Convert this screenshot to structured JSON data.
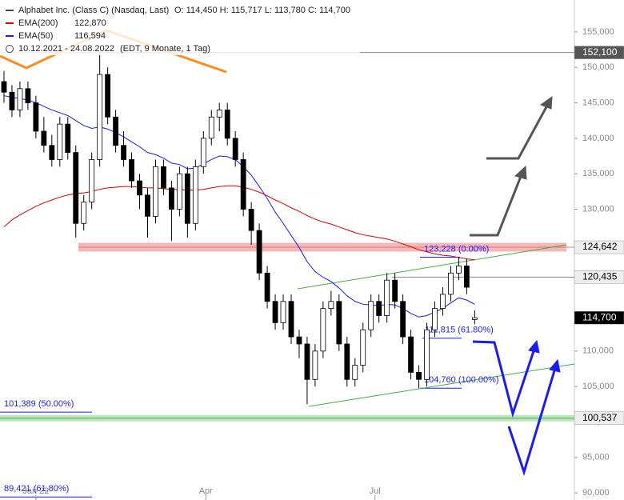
{
  "chart_data": {
    "type": "candlestick",
    "title": "Alphabet Inc. (Class C) (Nasdaq, Last)",
    "ohlc_text": "O: 114,450  H: 115,717  L: 113,780  C: 114,700",
    "period_text": "10.12.2021 - 24.08.2022",
    "period_note": "(EDT, 9 Monate, 1 Tag)",
    "xlim": [
      0,
      72
    ],
    "xticks": [
      {
        "value": 4.5,
        "label": "Jan 22"
      },
      {
        "value": 25.8,
        "label": "Apr"
      },
      {
        "value": 47,
        "label": "Jul"
      }
    ],
    "ylim": [
      89000,
      159500
    ],
    "yticks": [
      {
        "value": 155000,
        "label": "155,000"
      },
      {
        "value": 150000,
        "label": "150,000"
      },
      {
        "value": 145000,
        "label": "145,000"
      },
      {
        "value": 140000,
        "label": "140,000"
      },
      {
        "value": 135000,
        "label": "135,000"
      },
      {
        "value": 130000,
        "label": "130,000"
      },
      {
        "value": 125000,
        "label": "125,000"
      },
      {
        "value": 120000,
        "label": "120,000"
      },
      {
        "value": 115000,
        "label": "115,000"
      },
      {
        "value": 110000,
        "label": "110,000"
      },
      {
        "value": 105000,
        "label": "105,000"
      },
      {
        "value": 100000,
        "label": "100,000"
      },
      {
        "value": 95000,
        "label": "95,000"
      },
      {
        "value": 90000,
        "label": "90,000"
      }
    ],
    "candles": [
      [
        148000,
        149500,
        145000,
        146500
      ],
      [
        146500,
        147500,
        143000,
        144000
      ],
      [
        144000,
        148000,
        143000,
        147000
      ],
      [
        147000,
        148000,
        144000,
        145000
      ],
      [
        145000,
        146000,
        140000,
        141000
      ],
      [
        141000,
        143000,
        138000,
        139000
      ],
      [
        139000,
        140500,
        136000,
        137000
      ],
      [
        137000,
        143000,
        136000,
        142000
      ],
      [
        142000,
        143000,
        137000,
        138000
      ],
      [
        138000,
        139000,
        126000,
        128000
      ],
      [
        128000,
        132000,
        127000,
        131000
      ],
      [
        131000,
        138000,
        130000,
        137000
      ],
      [
        137000,
        152000,
        136000,
        149000
      ],
      [
        149000,
        150000,
        142000,
        143000
      ],
      [
        143000,
        144000,
        138000,
        139000
      ],
      [
        139000,
        141000,
        136000,
        137000
      ],
      [
        137000,
        138000,
        133000,
        134000
      ],
      [
        134000,
        135000,
        130000,
        132000
      ],
      [
        132000,
        133000,
        126000,
        129000
      ],
      [
        129000,
        137000,
        128000,
        136000
      ],
      [
        136000,
        137000,
        132000,
        133000
      ],
      [
        133000,
        134000,
        125500,
        130000
      ],
      [
        130000,
        136000,
        129000,
        135000
      ],
      [
        135000,
        136000,
        126000,
        128000
      ],
      [
        128000,
        137000,
        127000,
        136000
      ],
      [
        136000,
        141000,
        135000,
        140000
      ],
      [
        140000,
        144000,
        139000,
        143000
      ],
      [
        143000,
        145000,
        141000,
        144000
      ],
      [
        144000,
        145000,
        139000,
        140000
      ],
      [
        140000,
        141000,
        136000,
        137000
      ],
      [
        137000,
        138000,
        129000,
        130000
      ],
      [
        130000,
        131000,
        125000,
        127000
      ],
      [
        127000,
        128000,
        120000,
        121000
      ],
      [
        121000,
        122000,
        116000,
        117000
      ],
      [
        117000,
        118000,
        113000,
        114000
      ],
      [
        114000,
        118000,
        113000,
        117000
      ],
      [
        117000,
        118000,
        111000,
        112000
      ],
      [
        112000,
        113000,
        109000,
        111000
      ],
      [
        111000,
        112000,
        102500,
        106000
      ],
      [
        106000,
        111000,
        105000,
        110000
      ],
      [
        110000,
        117000,
        109000,
        116000
      ],
      [
        116000,
        118500,
        115000,
        117000
      ],
      [
        117000,
        118000,
        110000,
        111000
      ],
      [
        111000,
        112000,
        105000,
        106000
      ],
      [
        106000,
        109000,
        105000,
        108000
      ],
      [
        108000,
        114000,
        107000,
        113000
      ],
      [
        113000,
        118000,
        112000,
        117000
      ],
      [
        117000,
        118000,
        114000,
        115000
      ],
      [
        115000,
        121000,
        114000,
        120000
      ],
      [
        120000,
        121000,
        116000,
        117000
      ],
      [
        117000,
        118000,
        111000,
        112000
      ],
      [
        112000,
        113000,
        106000,
        107000
      ],
      [
        107000,
        108000,
        104760,
        106000
      ],
      [
        106000,
        114000,
        105000,
        113000
      ],
      [
        113000,
        117000,
        112000,
        116000
      ],
      [
        116000,
        119000,
        115000,
        118000
      ],
      [
        118000,
        122000,
        117000,
        121000
      ],
      [
        121000,
        123228,
        120000,
        122000
      ],
      [
        122000,
        123000,
        118000,
        119000
      ],
      [
        114450,
        115717,
        113780,
        114700
      ]
    ],
    "series": [
      {
        "name": "EMA(200)",
        "value_label": "122,870",
        "color": "#e00000",
        "values": [
          127500,
          128500,
          129200,
          129800,
          130400,
          130900,
          131300,
          131700,
          132000,
          132200,
          132300,
          132500,
          132800,
          133000,
          133100,
          133200,
          133200,
          133100,
          133000,
          133000,
          132900,
          132800,
          132800,
          132700,
          132700,
          132800,
          133000,
          133200,
          133300,
          133300,
          133100,
          132800,
          132400,
          131900,
          131300,
          130800,
          130200,
          129700,
          129100,
          128600,
          128200,
          127900,
          127500,
          127100,
          126700,
          126400,
          126200,
          126000,
          125800,
          125500,
          125100,
          124700,
          124300,
          124000,
          123700,
          123500,
          123400,
          123200,
          123000,
          122870
        ]
      },
      {
        "name": "EMA(50)",
        "value_label": "116,594",
        "color": "#1a1aff",
        "values": [
          146000,
          145800,
          145600,
          145400,
          145000,
          144500,
          144000,
          143600,
          143200,
          142500,
          141800,
          141400,
          141600,
          141300,
          140800,
          140200,
          139500,
          138800,
          138000,
          137700,
          137200,
          136500,
          136300,
          135700,
          135800,
          136400,
          137000,
          137500,
          137400,
          137000,
          136000,
          134800,
          133200,
          131500,
          129600,
          128000,
          126300,
          124600,
          122600,
          121200,
          120400,
          119800,
          118900,
          117800,
          117000,
          116600,
          116500,
          116400,
          116600,
          116500,
          116000,
          115300,
          114800,
          115000,
          115500,
          116000,
          116800,
          117500,
          117200,
          116594
        ]
      }
    ],
    "levels": [
      {
        "value": 152100,
        "label": "152,100"
      },
      {
        "value": 124642,
        "label": "124,642"
      },
      {
        "value": 120435,
        "label": "120,435"
      },
      {
        "value": 114700,
        "label": "114,700"
      },
      {
        "value": 100537,
        "label": "100,537"
      }
    ],
    "fibs": [
      {
        "value": 123228,
        "label": "123,228 (0.00%)"
      },
      {
        "value": 111815,
        "label": "111,815 (61.80%)"
      },
      {
        "value": 104760,
        "label": "104,760 (100.00%)"
      },
      {
        "value": 101389,
        "label": "101,389 (50.00%)"
      },
      {
        "value": 89421,
        "label": "89,421 (61,80%)"
      }
    ]
  }
}
